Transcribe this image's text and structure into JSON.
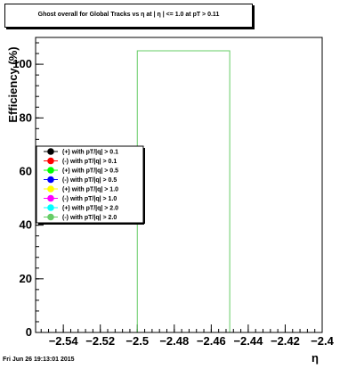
{
  "chart_data": {
    "type": "histogram",
    "title": "Ghost overall for Global Tracks vs   η at | η | <= 1.0 at pT > 0.11",
    "xlabel": "η",
    "ylabel": "Efficiency (%)",
    "xlim": [
      -2.555,
      -2.4
    ],
    "ylim": [
      0,
      110
    ],
    "x_ticks": [
      -2.54,
      -2.52,
      -2.5,
      -2.48,
      -2.46,
      -2.44,
      -2.42,
      -2.4
    ],
    "x_tick_labels": [
      "−2.54",
      "−2.52",
      "−2.5",
      "−2.48",
      "−2.46",
      "−2.44",
      "−2.42",
      "−2.4"
    ],
    "y_ticks": [
      0,
      20,
      40,
      60,
      80,
      100
    ],
    "y_tick_labels": [
      "0",
      "20",
      "40",
      "60",
      "80",
      "100"
    ],
    "series": [
      {
        "name": "(-) with pT/|q| > 2.0",
        "color": "#66cc66",
        "bins": [
          {
            "x0": -2.5,
            "x1": -2.45,
            "value": 105
          }
        ]
      }
    ],
    "legend": {
      "placement": "center-left",
      "entries": [
        {
          "label": "(+) with pT/|q| > 0.1",
          "color": "#000000"
        },
        {
          "label": "(-) with pT/|q| > 0.1",
          "color": "#ff0000"
        },
        {
          "label": "(+) with pT/|q| > 0.5",
          "color": "#00ff00"
        },
        {
          "label": "(-) with pT/|q| > 0.5",
          "color": "#0000ff"
        },
        {
          "label": "(+) with pT/|q| > 1.0",
          "color": "#ffff00"
        },
        {
          "label": "(-) with pT/|q| > 1.0",
          "color": "#ff00ff"
        },
        {
          "label": "(+) with pT/|q| > 2.0",
          "color": "#00ffff"
        },
        {
          "label": "(-) with pT/|q| > 2.0",
          "color": "#66cc66"
        }
      ]
    }
  },
  "footer": {
    "timestamp": "Fri Jun 26 19:13:01 2015"
  }
}
